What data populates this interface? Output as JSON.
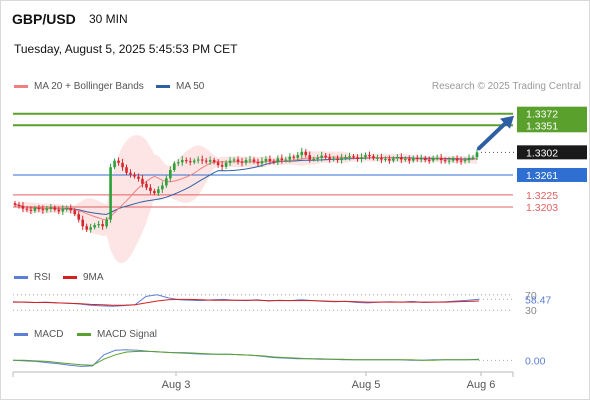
{
  "header": {
    "symbol": "GBP/USD",
    "timeframe": "30 MIN",
    "datetime": "Tuesday, August 5, 2025 5:45:53 PM CET"
  },
  "credit": "Research © 2025 Trading Central",
  "colors": {
    "ma20": "#f08080",
    "ma50": "#2e5fa3",
    "bollinger_fill": "#fde2e2",
    "resistance": "#5aa02c",
    "support": "#e06060",
    "pivot": "#2e6fd1",
    "rsi": "#5b7fd6",
    "rsi_ma": "#d42020",
    "macd": "#5b7fd6",
    "macd_signal": "#5aa02c",
    "arrow": "#2e5fa3",
    "candle_up": "#2aa13a",
    "candle_down": "#d9262c"
  },
  "chart_data": [
    {
      "type": "candlestick",
      "name": "price",
      "legend": [
        {
          "label": "MA 20 + Bollinger Bands",
          "color": "#f08080"
        },
        {
          "label": "MA 50",
          "color": "#2e5fa3"
        }
      ],
      "x_ticks": [
        "Aug 3",
        "Aug 5",
        "Aug 6"
      ],
      "ylim": [
        1.3145,
        1.3395
      ],
      "current_price": 1.3302,
      "levels": [
        {
          "value": 1.3372,
          "label": "1.3372",
          "kind": "resistance"
        },
        {
          "value": 1.3351,
          "label": "1.3351",
          "kind": "resistance"
        },
        {
          "value": 1.3261,
          "label": "1.3261",
          "kind": "pivot"
        },
        {
          "value": 1.3225,
          "label": "1.3225",
          "kind": "support"
        },
        {
          "value": 1.3203,
          "label": "1.3203",
          "kind": "support"
        }
      ],
      "closes": [
        1.3207,
        1.3205,
        1.32,
        1.3198,
        1.3196,
        1.3201,
        1.3199,
        1.3197,
        1.32,
        1.3202,
        1.3198,
        1.3195,
        1.3199,
        1.3201,
        1.3197,
        1.319,
        1.318,
        1.3168,
        1.3162,
        1.3166,
        1.317,
        1.3172,
        1.3168,
        1.318,
        1.3275,
        1.3287,
        1.3283,
        1.3275,
        1.3265,
        1.3262,
        1.3258,
        1.3254,
        1.3245,
        1.3238,
        1.3232,
        1.3228,
        1.3235,
        1.3242,
        1.3255,
        1.327,
        1.3282,
        1.3284,
        1.3288,
        1.3286,
        1.3284,
        1.3287,
        1.3289,
        1.3287,
        1.3285,
        1.3288,
        1.3284,
        1.3279,
        1.3276,
        1.3283,
        1.3287,
        1.3289,
        1.3285,
        1.3283,
        1.3288,
        1.3289,
        1.3285,
        1.3282,
        1.3286,
        1.329,
        1.3286,
        1.3284,
        1.3291,
        1.3288,
        1.3289,
        1.3294,
        1.3292,
        1.3297,
        1.3303,
        1.3297,
        1.3289,
        1.329,
        1.3292,
        1.3296,
        1.3293,
        1.3289,
        1.3291,
        1.3288,
        1.3292,
        1.3293,
        1.3295,
        1.3293,
        1.329,
        1.3293,
        1.3297,
        1.3295,
        1.3291,
        1.3292,
        1.3289,
        1.329,
        1.3287,
        1.3291,
        1.3293,
        1.3289,
        1.329,
        1.3287,
        1.3292,
        1.329,
        1.3291,
        1.3288,
        1.3287,
        1.3292,
        1.3292,
        1.3288,
        1.3286,
        1.3287,
        1.3291,
        1.3287,
        1.3286,
        1.3288,
        1.3292,
        1.3293,
        1.3302
      ]
    },
    {
      "type": "line",
      "name": "rsi",
      "legend": [
        {
          "label": "RSI",
          "color": "#5b7fd6"
        },
        {
          "label": "9MA",
          "color": "#d42020"
        }
      ],
      "ylim": [
        20,
        80
      ],
      "guides": [
        70,
        30
      ],
      "guide_labels": [
        "70",
        "30"
      ],
      "current_value": 58.47,
      "current_label": "58.47",
      "series": [
        {
          "name": "RSI",
          "values": [
            52,
            51,
            50,
            51,
            49,
            48,
            46,
            43,
            41,
            40,
            42,
            44,
            66,
            70,
            62,
            57,
            56,
            55,
            57,
            58,
            56,
            55,
            57,
            54,
            56,
            55,
            57,
            55,
            53,
            52,
            53,
            50,
            49,
            51,
            52,
            51,
            53,
            50,
            51,
            52,
            54,
            56,
            58.47
          ]
        },
        {
          "name": "9MA",
          "values": [
            51,
            51,
            50,
            50,
            49,
            48,
            47,
            45,
            44,
            43,
            43,
            44,
            49,
            54,
            57,
            58,
            58,
            57,
            56,
            56,
            56,
            56,
            56,
            55,
            55,
            55,
            55,
            55,
            54,
            53,
            53,
            52,
            51,
            51,
            51,
            51,
            51,
            51,
            51,
            51,
            52,
            53,
            54
          ]
        }
      ]
    },
    {
      "type": "line",
      "name": "macd",
      "legend": [
        {
          "label": "MACD",
          "color": "#5b7fd6"
        },
        {
          "label": "MACD Signal",
          "color": "#5aa02c"
        }
      ],
      "ylim": [
        -0.0012,
        0.0024
      ],
      "zero_label": "0.00",
      "series": [
        {
          "name": "MACD",
          "values": [
            0,
            -0.0001,
            -0.0002,
            -0.0004,
            -0.0006,
            -0.0009,
            -0.0011,
            -0.001,
            0.001,
            0.0018,
            0.0019,
            0.0018,
            0.0016,
            0.0015,
            0.0014,
            0.0013,
            0.0012,
            0.0011,
            0.0011,
            0.0011,
            0.001,
            0.0009,
            0.0007,
            0.0005,
            0.0004,
            0.0003,
            0.0003,
            0.0002,
            0.0002,
            0.0001,
            0.0001,
            0.0001,
            0.0001,
            0.0001,
            0.0001,
            0.0,
            0.0,
            0.0001,
            0.0001,
            0.0001,
            0.0001,
            0.0002
          ]
        },
        {
          "name": "MACD Signal",
          "values": [
            0,
            0,
            -0.0001,
            -0.0002,
            -0.0004,
            -0.0006,
            -0.0008,
            -0.0009,
            0.0002,
            0.001,
            0.0015,
            0.0016,
            0.0016,
            0.0015,
            0.0014,
            0.0014,
            0.0013,
            0.0012,
            0.0011,
            0.0011,
            0.001,
            0.0009,
            0.0008,
            0.0006,
            0.0005,
            0.0004,
            0.0003,
            0.0003,
            0.0002,
            0.0002,
            0.0001,
            0.0001,
            0.0001,
            0.0001,
            0.0001,
            0.0001,
            0.0,
            0.0,
            0.0001,
            0.0001,
            0.0001,
            0.0001
          ]
        }
      ]
    }
  ]
}
